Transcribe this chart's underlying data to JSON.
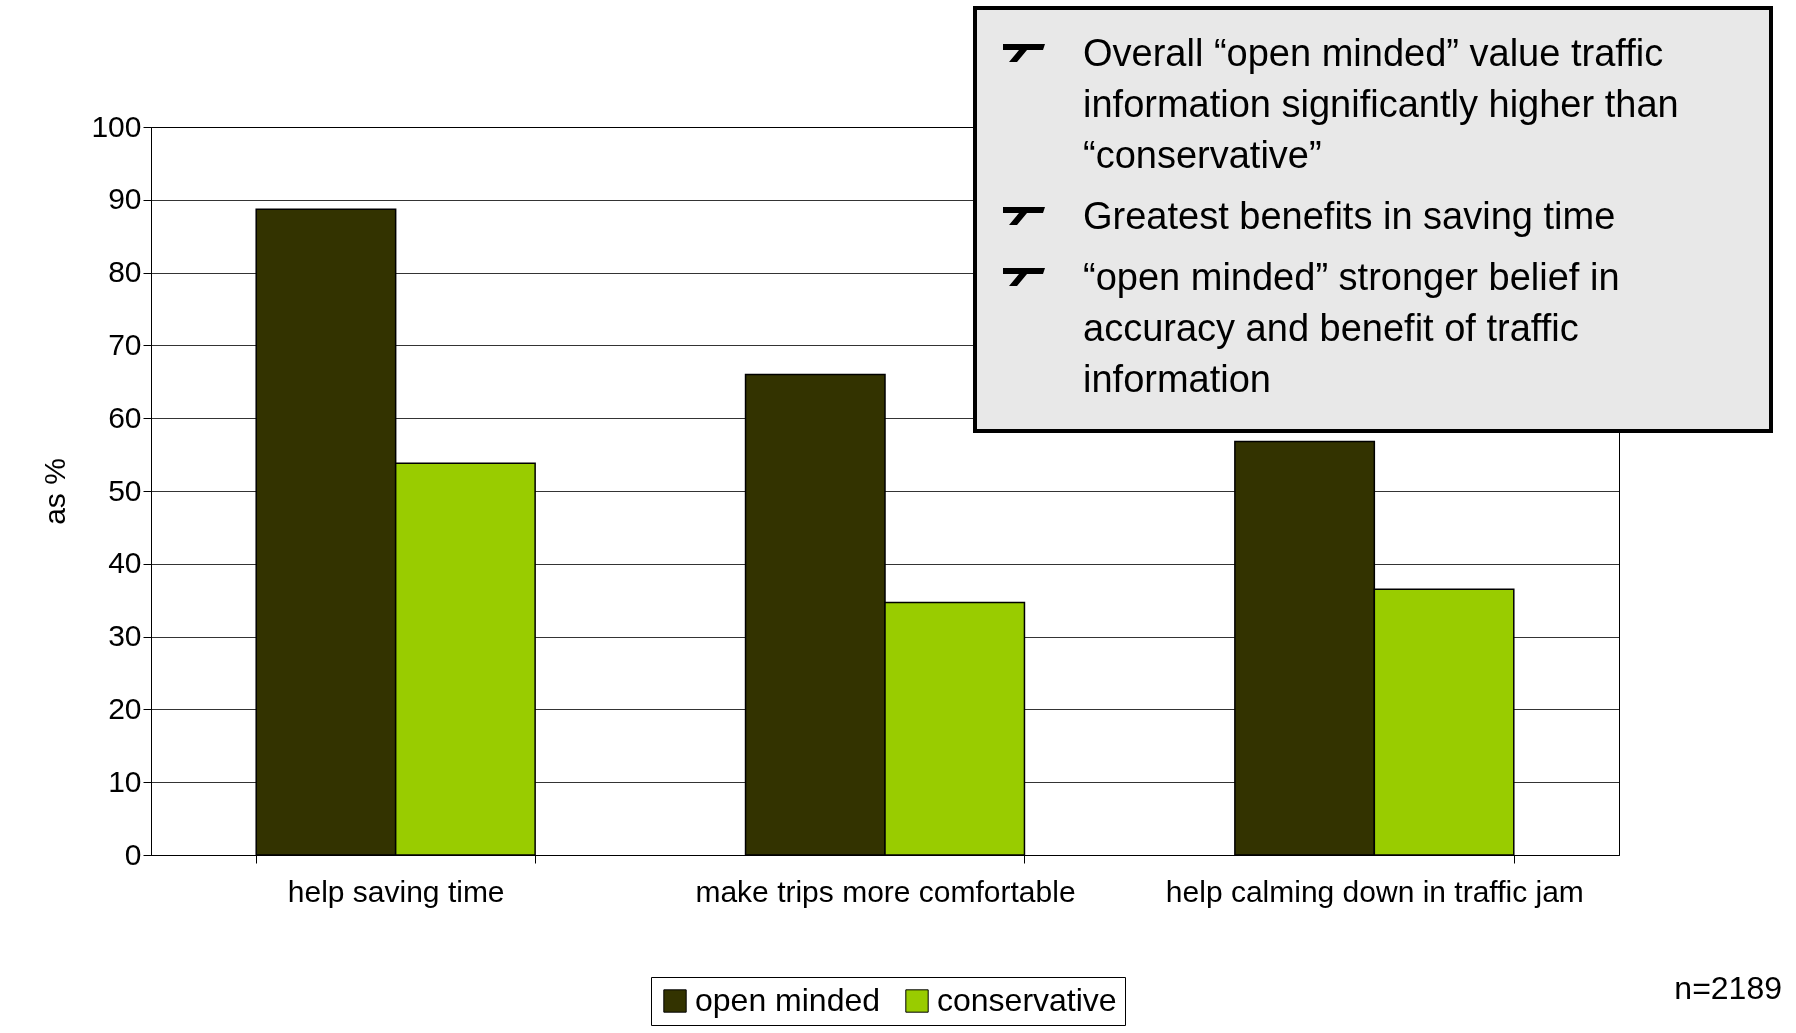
{
  "chart_data": {
    "type": "bar",
    "ylabel": "as %",
    "categories": [
      "help saving time",
      "make trips more comfortable",
      "help calming down in traffic jam"
    ],
    "series": [
      {
        "name": "open minded",
        "color": "#333300",
        "values": [
          88.7,
          66.0,
          56.8
        ]
      },
      {
        "name": "conservative",
        "color": "#99cc00",
        "values": [
          53.8,
          34.7,
          36.5
        ]
      }
    ],
    "ylim": [
      0,
      100
    ],
    "yticks": [
      0,
      10,
      20,
      30,
      40,
      50,
      60,
      70,
      80,
      90,
      100
    ],
    "grid": "y",
    "legend": "bottom",
    "annotations": [
      "Overall “open minded” value traffic information significantly higher than “conservative”",
      "Greatest benefits in saving time",
      "“open minded” stronger belief in accuracy and benefit of traffic information",
      "n=2189"
    ]
  }
}
